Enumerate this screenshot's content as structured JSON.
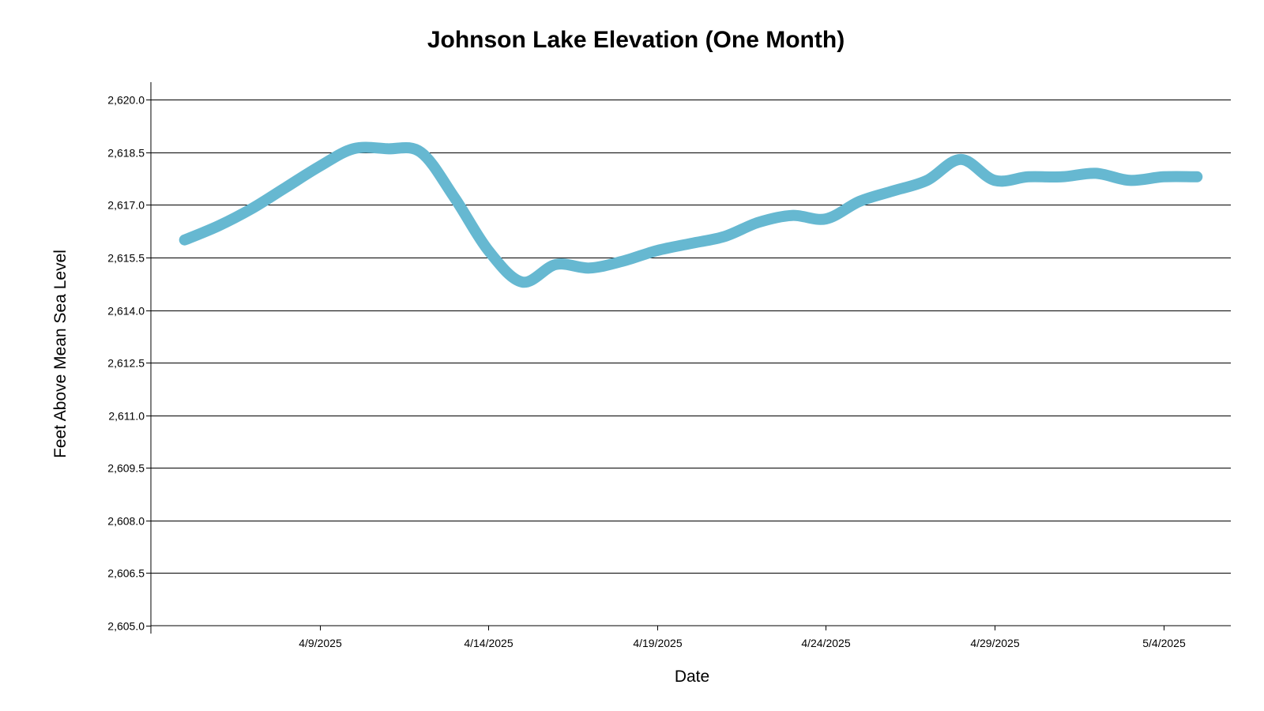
{
  "chart_data": {
    "type": "line",
    "title": "Johnson Lake Elevation (One Month)",
    "xlabel": "Date",
    "ylabel": "Feet Above Mean Sea Level",
    "ylim": [
      2605.0,
      2620.5
    ],
    "xlim": [
      "2025-04-04",
      "2025-05-06"
    ],
    "grid": "horizontal",
    "legend": "none",
    "line_color": "#66B8D1",
    "yticks": [
      {
        "value": 2605.0,
        "label": "2,605.0"
      },
      {
        "value": 2606.5,
        "label": "2,606.5"
      },
      {
        "value": 2608.0,
        "label": "2,608.0"
      },
      {
        "value": 2609.5,
        "label": "2,609.5"
      },
      {
        "value": 2611.0,
        "label": "2,611.0"
      },
      {
        "value": 2612.5,
        "label": "2,612.5"
      },
      {
        "value": 2614.0,
        "label": "2,614.0"
      },
      {
        "value": 2615.5,
        "label": "2,615.5"
      },
      {
        "value": 2617.0,
        "label": "2,617.0"
      },
      {
        "value": 2618.5,
        "label": "2,618.5"
      },
      {
        "value": 2620.0,
        "label": "2,620.0"
      }
    ],
    "xticks": [
      {
        "date": "2025-04-09",
        "label": "4/9/2025"
      },
      {
        "date": "2025-04-14",
        "label": "4/14/2025"
      },
      {
        "date": "2025-04-19",
        "label": "4/19/2025"
      },
      {
        "date": "2025-04-24",
        "label": "4/24/2025"
      },
      {
        "date": "2025-04-29",
        "label": "4/29/2025"
      },
      {
        "date": "2025-05-04",
        "label": "5/4/2025"
      }
    ],
    "series": [
      {
        "points": [
          {
            "x": "2025-04-05",
            "y": 2616.0
          },
          {
            "x": "2025-04-06",
            "y": 2616.4
          },
          {
            "x": "2025-04-07",
            "y": 2616.9
          },
          {
            "x": "2025-04-08",
            "y": 2617.5
          },
          {
            "x": "2025-04-09",
            "y": 2618.1
          },
          {
            "x": "2025-04-10",
            "y": 2618.6
          },
          {
            "x": "2025-04-11",
            "y": 2618.6
          },
          {
            "x": "2025-04-12",
            "y": 2618.5
          },
          {
            "x": "2025-04-13",
            "y": 2617.2
          },
          {
            "x": "2025-04-14",
            "y": 2615.7
          },
          {
            "x": "2025-04-15",
            "y": 2614.8
          },
          {
            "x": "2025-04-16",
            "y": 2615.3
          },
          {
            "x": "2025-04-17",
            "y": 2615.2
          },
          {
            "x": "2025-04-18",
            "y": 2615.4
          },
          {
            "x": "2025-04-19",
            "y": 2615.7
          },
          {
            "x": "2025-04-20",
            "y": 2615.9
          },
          {
            "x": "2025-04-21",
            "y": 2616.1
          },
          {
            "x": "2025-04-22",
            "y": 2616.5
          },
          {
            "x": "2025-04-23",
            "y": 2616.7
          },
          {
            "x": "2025-04-24",
            "y": 2616.6
          },
          {
            "x": "2025-04-25",
            "y": 2617.1
          },
          {
            "x": "2025-04-26",
            "y": 2617.4
          },
          {
            "x": "2025-04-27",
            "y": 2617.7
          },
          {
            "x": "2025-04-28",
            "y": 2618.3
          },
          {
            "x": "2025-04-29",
            "y": 2617.7
          },
          {
            "x": "2025-04-30",
            "y": 2617.8
          },
          {
            "x": "2025-05-01",
            "y": 2617.8
          },
          {
            "x": "2025-05-02",
            "y": 2617.9
          },
          {
            "x": "2025-05-03",
            "y": 2617.7
          },
          {
            "x": "2025-05-04",
            "y": 2617.8
          },
          {
            "x": "2025-05-05",
            "y": 2617.8
          }
        ]
      }
    ]
  }
}
